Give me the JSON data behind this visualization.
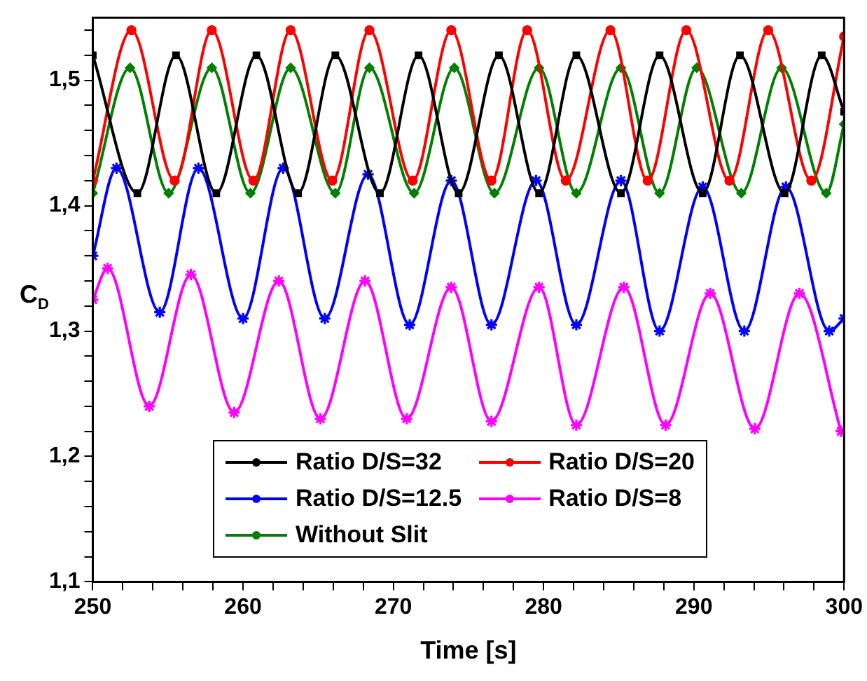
{
  "chart_data": {
    "type": "line",
    "xlabel": "Time [s]",
    "ylabel": "C$_{D}$",
    "xlim": [
      250,
      300
    ],
    "ylim": [
      1.1,
      1.55
    ],
    "xticks": [
      250,
      {
        "value": 252,
        "label": null
      },
      {
        "value": 254,
        "label": null
      },
      {
        "value": 256,
        "label": null
      },
      {
        "value": 258,
        "label": null
      },
      260,
      {
        "value": 262,
        "label": null
      },
      {
        "value": 264,
        "label": null
      },
      {
        "value": 266,
        "label": null
      },
      {
        "value": 268,
        "label": null
      },
      270,
      {
        "value": 272,
        "label": null
      },
      {
        "value": 274,
        "label": null
      },
      {
        "value": 276,
        "label": null
      },
      {
        "value": 278,
        "label": null
      },
      280,
      {
        "value": 282,
        "label": null
      },
      {
        "value": 284,
        "label": null
      },
      {
        "value": 286,
        "label": null
      },
      {
        "value": 288,
        "label": null
      },
      290,
      {
        "value": 292,
        "label": null
      },
      {
        "value": 294,
        "label": null
      },
      {
        "value": 296,
        "label": null
      },
      {
        "value": 298,
        "label": null
      },
      300
    ],
    "yticks": [
      {
        "value": 1.1,
        "label": "1,1"
      },
      {
        "value": 1.12,
        "label": null
      },
      {
        "value": 1.14,
        "label": null
      },
      {
        "value": 1.16,
        "label": null
      },
      {
        "value": 1.18,
        "label": null
      },
      {
        "value": 1.2,
        "label": "1,2"
      },
      {
        "value": 1.22,
        "label": null
      },
      {
        "value": 1.24,
        "label": null
      },
      {
        "value": 1.26,
        "label": null
      },
      {
        "value": 1.28,
        "label": null
      },
      {
        "value": 1.3,
        "label": "1,3"
      },
      {
        "value": 1.32,
        "label": null
      },
      {
        "value": 1.34,
        "label": null
      },
      {
        "value": 1.36,
        "label": null
      },
      {
        "value": 1.38,
        "label": null
      },
      {
        "value": 1.4,
        "label": "1,4"
      },
      {
        "value": 1.42,
        "label": null
      },
      {
        "value": 1.44,
        "label": null
      },
      {
        "value": 1.46,
        "label": null
      },
      {
        "value": 1.48,
        "label": null
      },
      {
        "value": 1.5,
        "label": "1,5"
      },
      {
        "value": 1.52,
        "label": null
      },
      {
        "value": 1.54,
        "label": null
      }
    ],
    "grid": false,
    "legend": "bottom",
    "line_style": "solid",
    "series": [
      {
        "name": "Ratio D/S=32",
        "color": "#000000",
        "marker": "square",
        "x": [
          250,
          252.97,
          255.54,
          258.22,
          260.89,
          263.66,
          266.14,
          269.11,
          271.68,
          274.35,
          277.03,
          279.7,
          282.18,
          285.15,
          287.72,
          290.59,
          293.07,
          296.04,
          298.51,
          300
        ],
        "values": [
          1.52,
          1.41,
          1.52,
          1.41,
          1.52,
          1.41,
          1.52,
          1.41,
          1.52,
          1.41,
          1.52,
          1.41,
          1.52,
          1.41,
          1.52,
          1.41,
          1.52,
          1.41,
          1.52,
          1.475
        ]
      },
      {
        "name": "Ratio D/S=20",
        "color": "#ff0000",
        "marker": "circle",
        "x": [
          250,
          252.57,
          255.45,
          257.92,
          260.69,
          263.17,
          265.94,
          268.41,
          271.29,
          273.86,
          276.53,
          278.91,
          281.48,
          284.45,
          286.93,
          289.5,
          292.37,
          294.95,
          297.82,
          300
        ],
        "values": [
          1.42,
          1.54,
          1.42,
          1.54,
          1.42,
          1.54,
          1.42,
          1.54,
          1.42,
          1.54,
          1.42,
          1.54,
          1.42,
          1.54,
          1.42,
          1.54,
          1.42,
          1.54,
          1.42,
          1.535
        ]
      },
      {
        "name": "Ratio D/S=12.5",
        "color": "#0000ff",
        "marker": "cross",
        "x": [
          250,
          251.58,
          254.46,
          257.03,
          260,
          262.67,
          265.44,
          268.32,
          271.09,
          273.86,
          276.53,
          279.5,
          282.18,
          285.15,
          287.72,
          290.59,
          293.36,
          296.13,
          299.01,
          300
        ],
        "values": [
          1.36,
          1.43,
          1.315,
          1.43,
          1.31,
          1.43,
          1.31,
          1.425,
          1.305,
          1.42,
          1.305,
          1.42,
          1.305,
          1.42,
          1.3,
          1.415,
          1.3,
          1.415,
          1.3,
          1.31
        ]
      },
      {
        "name": "Ratio D/S=8",
        "color": "#ff00ff",
        "marker": "cross",
        "x": [
          250,
          250.99,
          253.76,
          256.53,
          259.41,
          262.38,
          265.15,
          268.12,
          270.89,
          273.86,
          276.53,
          279.7,
          282.18,
          285.34,
          288.12,
          291.09,
          294.06,
          297.03,
          299.8
        ],
        "values": [
          1.325,
          1.35,
          1.24,
          1.345,
          1.235,
          1.34,
          1.23,
          1.34,
          1.23,
          1.335,
          1.228,
          1.335,
          1.225,
          1.335,
          1.225,
          1.33,
          1.222,
          1.33,
          1.22
        ]
      },
      {
        "name": "Without Slit",
        "color": "#008000",
        "marker": "diamond",
        "x": [
          250,
          252.48,
          255.05,
          257.92,
          260.49,
          263.17,
          266.14,
          268.41,
          271.38,
          274.06,
          276.73,
          279.7,
          282.18,
          285.15,
          287.72,
          290.19,
          293.16,
          295.84,
          298.81,
          300
        ],
        "values": [
          1.41,
          1.51,
          1.41,
          1.51,
          1.41,
          1.51,
          1.41,
          1.51,
          1.41,
          1.51,
          1.41,
          1.51,
          1.41,
          1.51,
          1.41,
          1.51,
          1.41,
          1.51,
          1.41,
          1.465
        ]
      }
    ]
  }
}
